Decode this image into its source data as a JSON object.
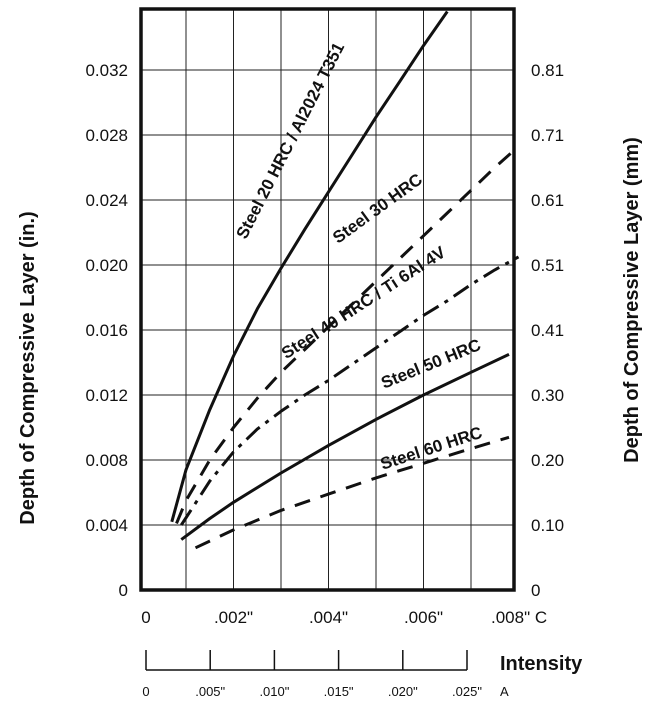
{
  "chart_data": {
    "type": "line",
    "xlabel": "Intensity",
    "ylabel_left": "Depth of Compressive Layer (in.)",
    "ylabel_right": "Depth of Compressive Layer (mm)",
    "xlim": [
      0,
      0.008
    ],
    "ylim": [
      0,
      0.036
    ],
    "grid": true,
    "x_ticks": [
      {
        "value": 0,
        "label": "0"
      },
      {
        "value": 0.002,
        "label": ".002\""
      },
      {
        "value": 0.004,
        "label": ".004\""
      },
      {
        "value": 0.006,
        "label": ".006\""
      },
      {
        "value": 0.008,
        "label": ".008\" C"
      }
    ],
    "y_ticks_left": [
      {
        "value": 0,
        "label": "0"
      },
      {
        "value": 0.004,
        "label": "0.004"
      },
      {
        "value": 0.008,
        "label": "0.008"
      },
      {
        "value": 0.012,
        "label": "0.012"
      },
      {
        "value": 0.016,
        "label": "0.016"
      },
      {
        "value": 0.02,
        "label": "0.020"
      },
      {
        "value": 0.024,
        "label": "0.024"
      },
      {
        "value": 0.028,
        "label": "0.028"
      },
      {
        "value": 0.032,
        "label": "0.032"
      }
    ],
    "y_ticks_right": [
      {
        "value": 0,
        "label": "0"
      },
      {
        "value": 0.004,
        "label": "0.10"
      },
      {
        "value": 0.008,
        "label": "0.20"
      },
      {
        "value": 0.012,
        "label": "0.30"
      },
      {
        "value": 0.016,
        "label": "0.41"
      },
      {
        "value": 0.02,
        "label": "0.51"
      },
      {
        "value": 0.024,
        "label": "0.61"
      },
      {
        "value": 0.028,
        "label": "0.71"
      },
      {
        "value": 0.032,
        "label": "0.81"
      }
    ],
    "a_scale": {
      "ticks": [
        {
          "label": "0",
          "c_value": 0
        },
        {
          "label": ".005\"",
          "c_value": 0.00137
        },
        {
          "label": ".010\"",
          "c_value": 0.00275
        },
        {
          "label": ".015\"",
          "c_value": 0.00413
        },
        {
          "label": ".020\"",
          "c_value": 0.0055
        },
        {
          "label": ".025\"",
          "c_value": 0.00688
        }
      ],
      "unit_label": "A"
    },
    "series": [
      {
        "name": "Steel 20 HRC / Al2024 T351",
        "style": "solid",
        "label_at": [
          0.0033,
          0.0275
        ],
        "x": [
          0.0007,
          0.001,
          0.0015,
          0.002,
          0.0025,
          0.003,
          0.0035,
          0.004,
          0.0045,
          0.005,
          0.0055,
          0.006,
          0.0065
        ],
        "y": [
          0.0042,
          0.0074,
          0.0111,
          0.0144,
          0.0173,
          0.0198,
          0.0222,
          0.0245,
          0.0268,
          0.0291,
          0.0313,
          0.0335,
          0.0356
        ]
      },
      {
        "name": "Steel 30 HRC",
        "style": "dashed",
        "label_at": [
          0.0051,
          0.0232
        ],
        "x": [
          0.0008,
          0.001,
          0.0015,
          0.002,
          0.0025,
          0.003,
          0.0035,
          0.004,
          0.0045,
          0.005,
          0.0055,
          0.006,
          0.0065,
          0.007,
          0.0075,
          0.008
        ],
        "y": [
          0.0041,
          0.0055,
          0.008,
          0.01,
          0.0118,
          0.0134,
          0.0148,
          0.0162,
          0.0176,
          0.019,
          0.0204,
          0.0218,
          0.0232,
          0.0246,
          0.026,
          0.0273
        ]
      },
      {
        "name": "Steel 40 HRC / Ti 6Al 4V",
        "style": "dashdot",
        "label_at": [
          0.0048,
          0.0174
        ],
        "x": [
          0.0009,
          0.0015,
          0.002,
          0.0025,
          0.003,
          0.0035,
          0.004,
          0.0045,
          0.005,
          0.0055,
          0.006,
          0.0065,
          0.007,
          0.0075,
          0.008
        ],
        "y": [
          0.004,
          0.0067,
          0.0085,
          0.0099,
          0.011,
          0.012,
          0.0129,
          0.0139,
          0.0149,
          0.0159,
          0.0169,
          0.0178,
          0.0188,
          0.0197,
          0.0205
        ]
      },
      {
        "name": "Steel 50 HRC",
        "style": "solid",
        "label_at": [
          0.0062,
          0.0136
        ],
        "x": [
          0.0009,
          0.0015,
          0.002,
          0.003,
          0.004,
          0.005,
          0.006,
          0.007,
          0.0078
        ],
        "y": [
          0.0031,
          0.0044,
          0.0054,
          0.0072,
          0.0089,
          0.0105,
          0.012,
          0.0134,
          0.0145
        ]
      },
      {
        "name": "Steel 60 HRC",
        "style": "dashed",
        "label_at": [
          0.0062,
          0.0084
        ],
        "x": [
          0.0012,
          0.002,
          0.003,
          0.004,
          0.005,
          0.006,
          0.007,
          0.0078
        ],
        "y": [
          0.0026,
          0.0037,
          0.0049,
          0.0059,
          0.0069,
          0.0078,
          0.0087,
          0.0094
        ]
      }
    ]
  }
}
